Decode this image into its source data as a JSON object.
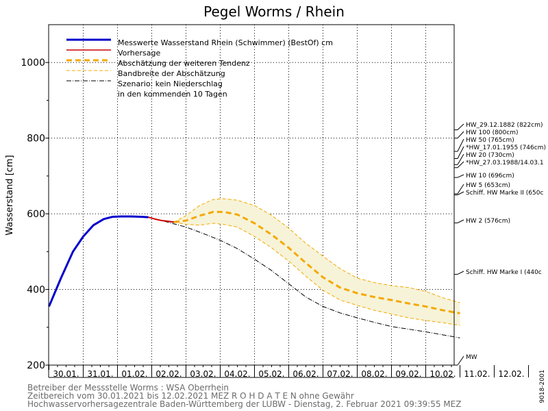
{
  "chart_data": {
    "type": "line",
    "title": "Pegel Worms / Rhein",
    "ylabel": "Wasserstand [cm]",
    "xlabel": "",
    "ylim": [
      200,
      1100
    ],
    "xlim": [
      0,
      14
    ],
    "yticks": [
      200,
      400,
      600,
      800,
      1000
    ],
    "grid": true,
    "legend_position": "top-left",
    "categories": [
      "30.01.",
      "31.01.",
      "01.02.",
      "02.02.",
      "03.02.",
      "04.02.",
      "05.02.",
      "06.02.",
      "07.02.",
      "08.02.",
      "09.02.",
      "10.02.",
      "11.02.",
      "12.02."
    ],
    "x_unit": "days since 30.01.2021 00:00",
    "series": [
      {
        "name": "Messwerte Wasserstand Rhein (Schwimmer) (BestOf)  cm",
        "style": "measured",
        "color": "#0000cc",
        "x": [
          0,
          0.35,
          0.7,
          1.0,
          1.3,
          1.6,
          1.85,
          2.1,
          2.4,
          2.7,
          2.9
        ],
        "y": [
          355,
          430,
          500,
          540,
          570,
          586,
          592,
          593,
          593,
          592,
          591
        ]
      },
      {
        "name": "Vorhersage",
        "style": "forecast",
        "color": "#cc0000",
        "x": [
          2.9,
          3.1,
          3.3,
          3.5,
          3.65
        ],
        "y": [
          591,
          586,
          582,
          580,
          578
        ]
      },
      {
        "name": "Abschätzung der weiteren Tendenz",
        "style": "tendency",
        "color": "#f5a800",
        "x": [
          3.65,
          4.0,
          4.4,
          4.8,
          5.1,
          5.5,
          6.0,
          6.5,
          7.0,
          7.5,
          8.0,
          8.5,
          9.0,
          9.5,
          10.0,
          10.5,
          11.0,
          11.5,
          12.0
        ],
        "y": [
          578,
          582,
          595,
          605,
          605,
          598,
          575,
          545,
          510,
          470,
          432,
          405,
          390,
          380,
          372,
          363,
          355,
          345,
          337
        ]
      },
      {
        "name": "Bandbreite der Abschätzung",
        "style": "band",
        "color": "#f5a800",
        "x": [
          3.65,
          4.0,
          4.4,
          4.8,
          5.1,
          5.5,
          6.0,
          6.5,
          7.0,
          7.5,
          8.0,
          8.5,
          9.0,
          9.5,
          10.0,
          10.5,
          11.0,
          11.5,
          12.0
        ],
        "y_upper": [
          578,
          595,
          622,
          638,
          640,
          636,
          622,
          596,
          562,
          522,
          488,
          455,
          430,
          418,
          410,
          405,
          395,
          378,
          365
        ],
        "y_lower": [
          578,
          572,
          570,
          575,
          572,
          565,
          540,
          510,
          475,
          435,
          398,
          372,
          358,
          345,
          335,
          325,
          318,
          312,
          305
        ]
      },
      {
        "name": "Szenario: kein Niederschlag in den kommenden 10 Tagen",
        "style": "scenario",
        "color": "#000000",
        "x": [
          2.9,
          3.5,
          4.0,
          4.5,
          5.0,
          5.5,
          6.0,
          6.5,
          7.0,
          7.5,
          8.0,
          8.5,
          9.0,
          9.5,
          10.0,
          10.5,
          11.0,
          11.5,
          12.0
        ],
        "y": [
          591,
          577,
          565,
          548,
          530,
          508,
          480,
          450,
          415,
          380,
          355,
          338,
          325,
          313,
          302,
          295,
          288,
          280,
          272
        ]
      }
    ],
    "legend_labels": [
      "Messwerte Wasserstand Rhein (Schwimmer) (BestOf)  cm",
      "Vorhersage",
      "Abschätzung der weiteren Tendenz",
      "Bandbreite der Abschätzung",
      "Szenario: kein Niederschlag",
      "in den kommenden 10 Tagen"
    ],
    "reference_levels": [
      {
        "label": "HW_29.12.1882 (822cm)",
        "value": 822
      },
      {
        "label": "HW 100 (800cm)",
        "value": 800
      },
      {
        "label": "HW 50 (765cm)",
        "value": 765
      },
      {
        "label": "*HW_17.01.1955 (746cm)",
        "value": 746
      },
      {
        "label": "HW 20 (730cm)",
        "value": 730
      },
      {
        "label": "*HW_27.03.1988/14.03.1",
        "value": 722
      },
      {
        "label": "HW 10 (696cm)",
        "value": 696
      },
      {
        "label": "HW 5 (653cm)",
        "value": 653
      },
      {
        "label": "Schiff. HW Marke II (650c",
        "value": 650
      },
      {
        "label": "HW 2 (576cm)",
        "value": 576
      },
      {
        "label": "Schiff. HW Marke I (440c",
        "value": 440
      },
      {
        "label": "MW",
        "value": 200
      }
    ]
  },
  "footer": {
    "line1": "Betreiber der Messstelle Worms : WSA Oberrhein",
    "line2": "Zeitbereich vom 30.01.2021 bis 12.02.2021    MEZ    R O H D A T E N ohne Gewähr",
    "line3": "Hochwasservorhersagezentrale Baden-Württemberg der LUBW - Dienstag, 2. Februar 2021 09:39:55 MEZ"
  },
  "side_code": "9018-2001"
}
